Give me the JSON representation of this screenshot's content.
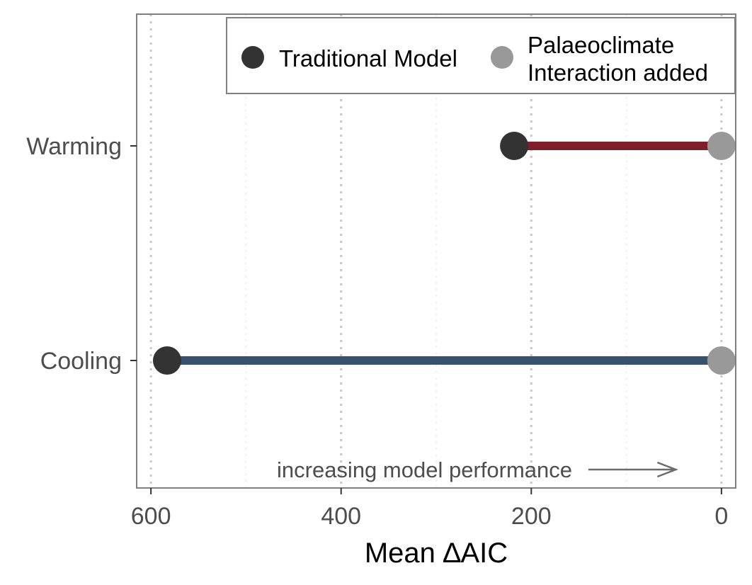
{
  "chart_data": {
    "type": "dumbbell",
    "xlabel": "Mean ∆AIC",
    "x_reversed": true,
    "xlim": [
      615,
      -15
    ],
    "xticks": [
      600,
      400,
      200,
      0
    ],
    "xtick_labels": [
      "600",
      "400",
      "200",
      "0"
    ],
    "grid_major_x": [
      600,
      400,
      200,
      0
    ],
    "grid_minor_x": [
      500,
      300,
      100
    ],
    "grid_style": "dotted",
    "categories": [
      "Warming",
      "Cooling"
    ],
    "series": [
      {
        "name": "Traditional Model",
        "values": [
          218,
          583
        ],
        "color": "#333333"
      },
      {
        "name": "Palaeoclimate Interaction added",
        "values": [
          0,
          0
        ],
        "color": "#999999"
      }
    ],
    "segment_colors": [
      "#7f1e27",
      "#37516f"
    ],
    "legend": {
      "placement": "top-right",
      "items": [
        {
          "label": "Traditional Model",
          "color": "#333333"
        },
        {
          "label_line1": "Palaeoclimate",
          "label_line2": "Interaction added",
          "color": "#999999"
        }
      ]
    },
    "annotation": {
      "text": "increasing model performance",
      "arrow_from": 140,
      "arrow_to": 48
    }
  }
}
